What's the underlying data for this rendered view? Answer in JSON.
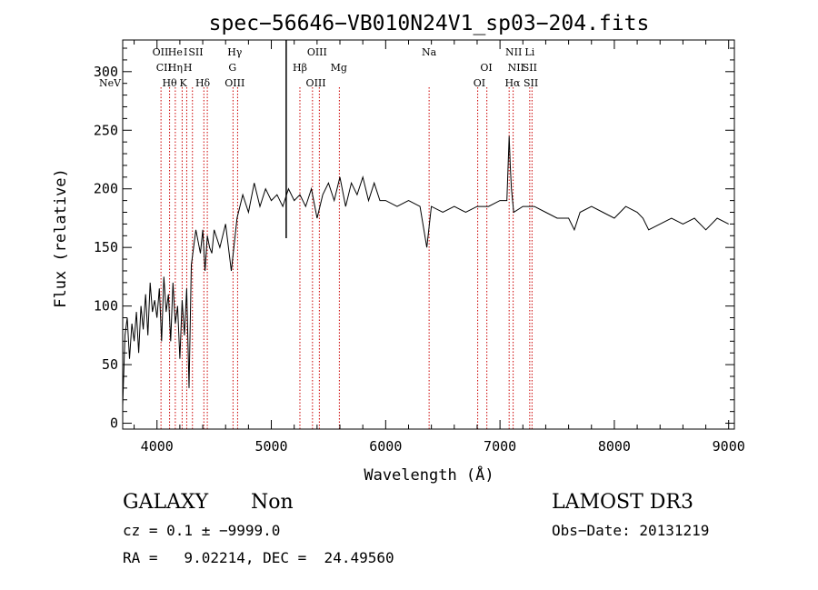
{
  "chart_data": {
    "type": "line",
    "title": "spec−56646−VB010N24V1_sp03−204.fits",
    "xlabel": "Wavelength (Å)",
    "ylabel": "Flux (relative)",
    "xlim": [
      3700,
      9050
    ],
    "ylim": [
      -5,
      327
    ],
    "x_ticks": [
      4000,
      5000,
      6000,
      7000,
      8000,
      9000
    ],
    "y_ticks": [
      0,
      50,
      100,
      150,
      200,
      250,
      300
    ],
    "grid": false,
    "line_color": "#000000",
    "marker_color": "#cc0000",
    "series": [
      {
        "x": [
          3700,
          3720,
          3740,
          3760,
          3780,
          3800,
          3820,
          3840,
          3860,
          3880,
          3900,
          3920,
          3940,
          3960,
          3980,
          4000,
          4020,
          4040,
          4060,
          4080,
          4100,
          4120,
          4140,
          4160,
          4180,
          4200,
          4220,
          4240,
          4260,
          4280,
          4300,
          4320,
          4340,
          4360,
          4380,
          4400,
          4420,
          4440,
          4460,
          4480,
          4500,
          4550,
          4600,
          4650,
          4700,
          4750,
          4800,
          4850,
          4900,
          4950,
          5000,
          5050,
          5100,
          5150,
          5200,
          5250,
          5300,
          5350,
          5400,
          5450,
          5500,
          5550,
          5600,
          5650,
          5700,
          5750,
          5800,
          5850,
          5900,
          5950,
          6000,
          6100,
          6200,
          6300,
          6360,
          6400,
          6500,
          6600,
          6700,
          6800,
          6900,
          7000,
          7060,
          7080,
          7090,
          7100,
          7120,
          7200,
          7300,
          7400,
          7500,
          7600,
          7650,
          7700,
          7800,
          7900,
          8000,
          8100,
          8200,
          8250,
          8300,
          8400,
          8500,
          8600,
          8700,
          8800,
          8900,
          9000
        ],
        "y": [
          15,
          75,
          90,
          55,
          85,
          70,
          95,
          60,
          100,
          80,
          110,
          75,
          120,
          95,
          105,
          90,
          115,
          70,
          125,
          95,
          110,
          70,
          120,
          85,
          100,
          55,
          105,
          75,
          115,
          30,
          135,
          150,
          165,
          155,
          145,
          165,
          130,
          160,
          150,
          145,
          165,
          150,
          170,
          130,
          175,
          195,
          180,
          205,
          185,
          200,
          190,
          195,
          185,
          200,
          190,
          195,
          185,
          200,
          175,
          195,
          205,
          190,
          210,
          185,
          205,
          195,
          210,
          190,
          205,
          190,
          190,
          185,
          190,
          185,
          150,
          185,
          180,
          185,
          180,
          185,
          185,
          190,
          190,
          245,
          220,
          200,
          180,
          185,
          185,
          180,
          175,
          175,
          165,
          180,
          185,
          180,
          175,
          185,
          180,
          175,
          165,
          170,
          175,
          170,
          175,
          165,
          175,
          170
        ]
      }
    ],
    "spectral_lines": [
      {
        "label": "NeV",
        "wavelength": 3426,
        "row": 3
      },
      {
        "label": "OII",
        "wavelength": 4030,
        "row": 1
      },
      {
        "label": "CII",
        "wavelength": 4060,
        "row": 2
      },
      {
        "label": "Hθ",
        "wavelength": 4110,
        "row": 3
      },
      {
        "label": "He",
        "wavelength": 4160,
        "row": 1
      },
      {
        "label": "Hη",
        "wavelength": 4160,
        "row": 2
      },
      {
        "label": "K",
        "wavelength": 4230,
        "row": 3
      },
      {
        "label": "I",
        "wavelength": 4250,
        "row": 1
      },
      {
        "label": "H",
        "wavelength": 4270,
        "row": 2
      },
      {
        "label": "SII",
        "wavelength": 4340,
        "row": 1
      },
      {
        "label": "Hδ",
        "wavelength": 4400,
        "row": 3
      },
      {
        "label": "Hγ",
        "wavelength": 4680,
        "row": 1
      },
      {
        "label": "G",
        "wavelength": 4660,
        "row": 2
      },
      {
        "label": "OIII",
        "wavelength": 4680,
        "row": 3
      },
      {
        "label": "OIII",
        "wavelength": 5400,
        "row": 1
      },
      {
        "label": "Hβ",
        "wavelength": 5250,
        "row": 2
      },
      {
        "label": "OIII",
        "wavelength": 5390,
        "row": 3
      },
      {
        "label": "Mg",
        "wavelength": 5590,
        "row": 2
      },
      {
        "label": "Na",
        "wavelength": 6380,
        "row": 1
      },
      {
        "label": "OI",
        "wavelength": 6880,
        "row": 2
      },
      {
        "label": "OI",
        "wavelength": 6820,
        "row": 3
      },
      {
        "label": "NII",
        "wavelength": 7120,
        "row": 1
      },
      {
        "label": "NII",
        "wavelength": 7140,
        "row": 2
      },
      {
        "label": "Hα",
        "wavelength": 7110,
        "row": 3
      },
      {
        "label": "Li",
        "wavelength": 7260,
        "row": 1
      },
      {
        "label": "SII",
        "wavelength": 7260,
        "row": 2
      },
      {
        "label": "SII",
        "wavelength": 7270,
        "row": 3
      }
    ],
    "marker_wavelengths": [
      4035,
      4110,
      4160,
      4220,
      4260,
      4310,
      4410,
      4440,
      4665,
      4705,
      5250,
      5360,
      5420,
      5595,
      6380,
      6805,
      6885,
      7080,
      7115,
      7260,
      7280
    ],
    "solid_line_wavelength": 5130
  },
  "info": {
    "object_type": "GALAXY",
    "subclass": "Non",
    "survey": "LAMOST DR3",
    "redshift_line": "cz = 0.1 ± −9999.0",
    "obs_date": "Obs−Date: 20131219",
    "coords": "RA =   9.02214, DEC =  24.49560"
  }
}
